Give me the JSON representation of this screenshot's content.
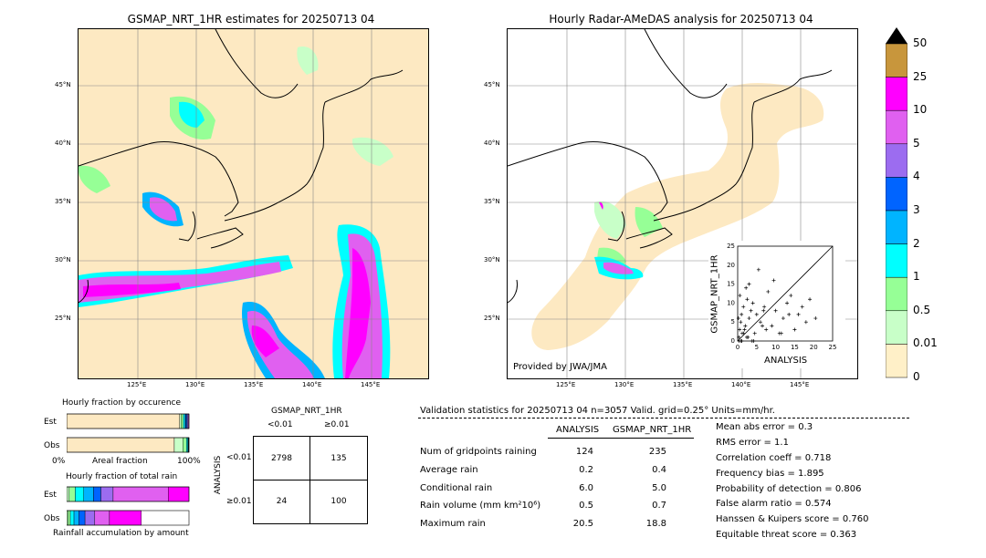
{
  "left_map": {
    "title": "GSMAP_NRT_1HR estimates for 20250713 04",
    "lat_labels": [
      "45°N",
      "40°N",
      "35°N",
      "30°N",
      "25°N"
    ],
    "lon_labels": [
      "125°E",
      "130°E",
      "135°E",
      "140°E",
      "145°E"
    ]
  },
  "right_map": {
    "title": "Hourly Radar-AMeDAS analysis for 20250713 04",
    "lat_labels": [
      "45°N",
      "40°N",
      "35°N",
      "30°N",
      "25°N"
    ],
    "lon_labels": [
      "125°E",
      "130°E",
      "135°E",
      "140°E",
      "145°E"
    ],
    "credit": "Provided by JWA/JMA"
  },
  "colorbar": {
    "levels": [
      "50",
      "25",
      "10",
      "5",
      "4",
      "3",
      "2",
      "1",
      "0.5",
      "0.01",
      "0"
    ],
    "colors": [
      "#c8963c",
      "#ff00ff",
      "#e060f0",
      "#9c6cf0",
      "#0064ff",
      "#00b4ff",
      "#00ffff",
      "#96ff96",
      "#c8ffc8",
      "#fff0c8"
    ]
  },
  "occurrence": {
    "title": "Hourly fraction by occurence",
    "row_est": "Est",
    "row_obs": "Obs",
    "axis_left": "0%",
    "axis_mid": "Areal fraction",
    "axis_right": "100%"
  },
  "total_rain": {
    "title": "Hourly fraction of total rain",
    "row_est": "Est",
    "row_obs": "Obs",
    "footer": "Rainfall accumulation by amount"
  },
  "contingency": {
    "col_title": "GSMAP_NRT_1HR",
    "col_lt": "<0.01",
    "col_ge": "≥0.01",
    "row_title": "ANALYSIS",
    "row_lt": "<0.01",
    "row_ge": "≥0.01",
    "values": [
      "2798",
      "135",
      "24",
      "100"
    ]
  },
  "validation": {
    "header": "Validation statistics for 20250713 04  n=3057 Valid. grid=0.25° Units=mm/hr.",
    "col_analysis": "ANALYSIS",
    "col_gsmap": "GSMAP_NRT_1HR",
    "rows": [
      {
        "label": "Num of gridpoints raining",
        "analysis": "124",
        "gsmap": "235"
      },
      {
        "label": "Average rain",
        "analysis": "0.2",
        "gsmap": "0.4"
      },
      {
        "label": "Conditional rain",
        "analysis": "6.0",
        "gsmap": "5.0"
      },
      {
        "label": "Rain volume (mm km²10⁶)",
        "analysis": "0.5",
        "gsmap": "0.7"
      },
      {
        "label": "Maximum rain",
        "analysis": "20.5",
        "gsmap": "18.8"
      }
    ],
    "scores": [
      "Mean abs error =    0.3",
      "RMS error =    1.1",
      "Correlation coeff =  0.718",
      "Frequency bias =  1.895",
      "Probability of detection =  0.806",
      "False alarm ratio =  0.574",
      "Hanssen & Kuipers score =  0.760",
      "Equitable threat score =  0.363"
    ]
  },
  "chart_data": [
    {
      "type": "bar",
      "title": "Hourly fraction by occurence",
      "xlabel": "Areal fraction",
      "series": [
        {
          "name": "Est",
          "values": [
            0.923,
            0.012,
            0.018,
            0.011,
            0.01,
            0.01,
            0.008,
            0.006,
            0.002
          ]
        },
        {
          "name": "Obs",
          "values": [
            0.88,
            0.07,
            0.03,
            0.01,
            0.004,
            0.003,
            0.002,
            0.001
          ]
        }
      ]
    },
    {
      "type": "bar",
      "title": "Hourly fraction of total rain",
      "xlabel": "Rainfall accumulation by amount",
      "series": [
        {
          "name": "Est",
          "values": [
            0.02,
            0.05,
            0.07,
            0.08,
            0.06,
            0.1,
            0.45,
            0.17
          ]
        },
        {
          "name": "Obs",
          "values": [
            0.01,
            0.02,
            0.03,
            0.04,
            0.05,
            0.08,
            0.12,
            0.26
          ]
        }
      ]
    },
    {
      "type": "scatter",
      "xlabel": "ANALYSIS",
      "ylabel": "GSMAP_NRT_1HR",
      "xlim": [
        0,
        25
      ],
      "ylim": [
        0,
        25
      ],
      "ticks": [
        "0",
        "5",
        "10",
        "15",
        "20",
        "25"
      ],
      "x": [
        0.5,
        0.8,
        1,
        1.2,
        1.5,
        2,
        2.5,
        3,
        3.5,
        4,
        0.3,
        0.6,
        1.8,
        2.2,
        5,
        6,
        7,
        8,
        9,
        10,
        11,
        12,
        13,
        14,
        15,
        16,
        17,
        18,
        19,
        20.5,
        3,
        4.5,
        5.5,
        6.5,
        0.4,
        1.1,
        2.7,
        3.8,
        7.5,
        9.5,
        11.5,
        13.5,
        0.2,
        0.9,
        1.6,
        2.4,
        4.2,
        6.8
      ],
      "y": [
        3,
        5,
        7,
        2,
        9,
        4,
        11,
        6,
        8,
        10,
        1,
        12,
        3,
        14,
        7,
        5,
        9,
        13,
        4,
        8,
        2,
        6,
        10,
        12,
        3,
        7,
        9,
        5,
        11,
        6,
        15,
        2,
        18.8,
        4,
        0,
        0,
        1,
        0,
        3,
        16,
        2,
        7,
        6,
        0,
        2,
        1,
        0,
        8
      ]
    }
  ]
}
